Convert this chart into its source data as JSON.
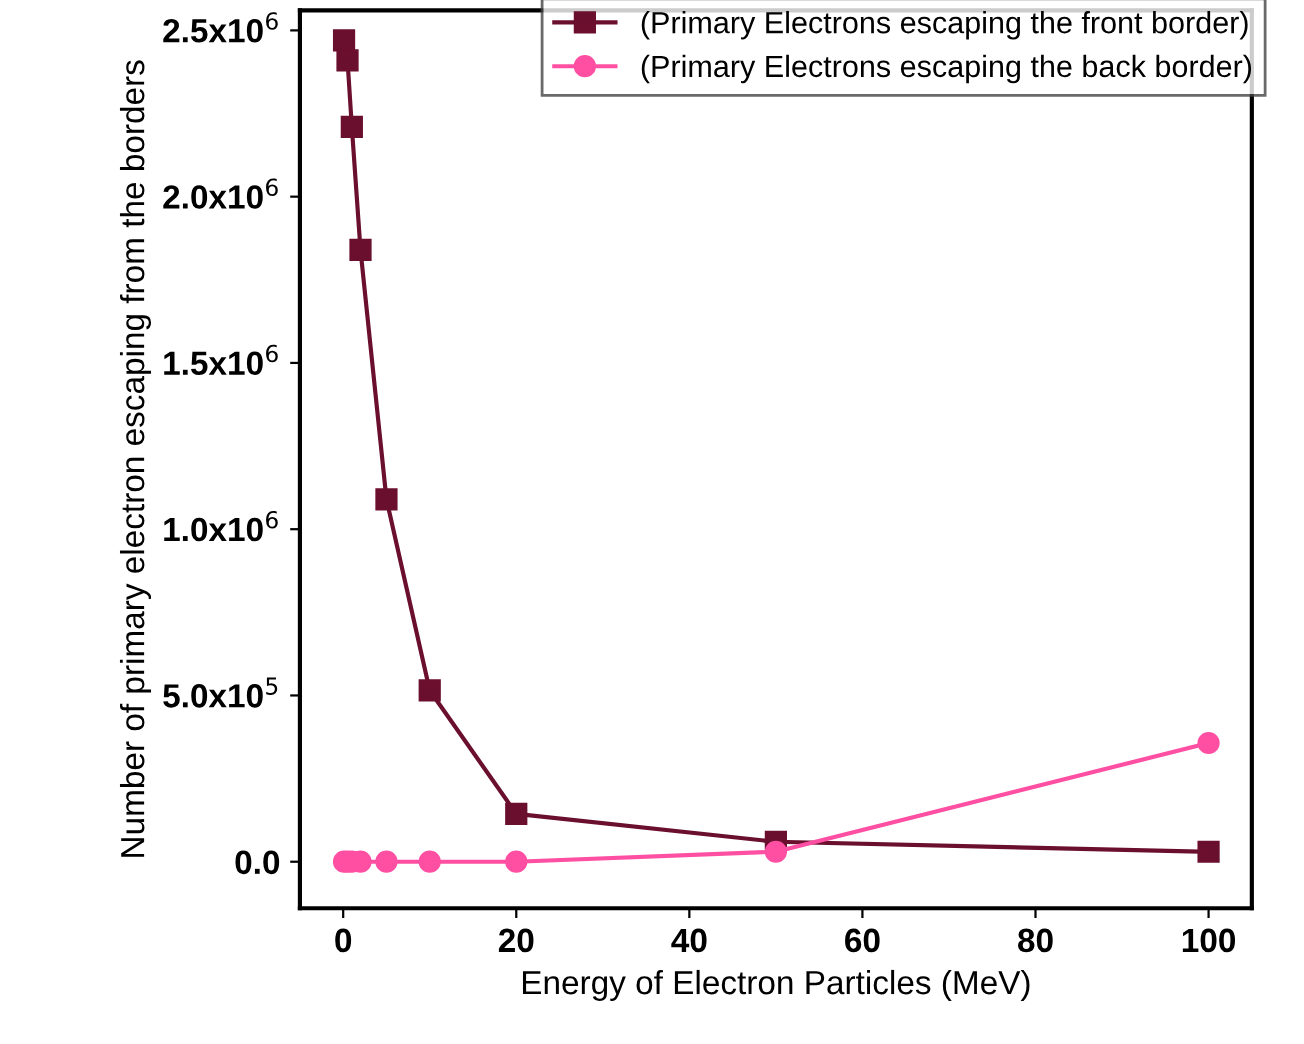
{
  "chart_data": {
    "type": "line",
    "xlabel": "Energy of Electron Particles (MeV)",
    "ylabel": "Number of primary electron escaping from the borders",
    "x": [
      0.1,
      0.5,
      1,
      2,
      5,
      10,
      20,
      50,
      100
    ],
    "series": [
      {
        "name": "(Primary Electrons escaping the front border)",
        "color": "#6b0f2f",
        "marker": "square",
        "values": [
          2470000,
          2410000,
          2210000,
          1840000,
          1090000,
          515000,
          144000,
          60000,
          30000
        ]
      },
      {
        "name": "(Primary Electrons escaping the back border)",
        "color": "#ff4fa3",
        "marker": "circle",
        "values": [
          0,
          0,
          0,
          0,
          0,
          0,
          0,
          30000,
          357000
        ]
      }
    ],
    "xlim": [
      -5,
      105
    ],
    "xticks": [
      0,
      20,
      40,
      60,
      80,
      100
    ],
    "ylim": [
      -140000,
      2560000
    ],
    "yticks": [
      {
        "value": 0,
        "label": "0.0"
      },
      {
        "value": 500000,
        "label": "5.0x10$^{5}$"
      },
      {
        "value": 1000000,
        "label": "1.0x10$^{6}$"
      },
      {
        "value": 1500000,
        "label": "1.5x10$^{6}$"
      },
      {
        "value": 2000000,
        "label": "2.0x10$^{6}$"
      },
      {
        "value": 2500000,
        "label": "2.5x10$^{6}$"
      }
    ],
    "grid": false,
    "legend": "top right",
    "line_style": "solid"
  }
}
